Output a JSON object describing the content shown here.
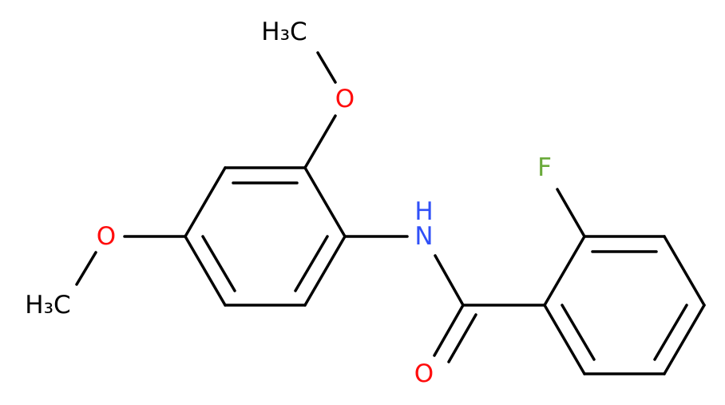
{
  "atoms": [
    {
      "label": "H₃C"
    },
    {
      "label": "O"
    },
    {
      "label": "H"
    },
    {
      "label": "N"
    },
    {
      "label": "F"
    },
    {
      "label": "O"
    },
    {
      "label": "O"
    },
    {
      "label": "H₃C"
    }
  ]
}
